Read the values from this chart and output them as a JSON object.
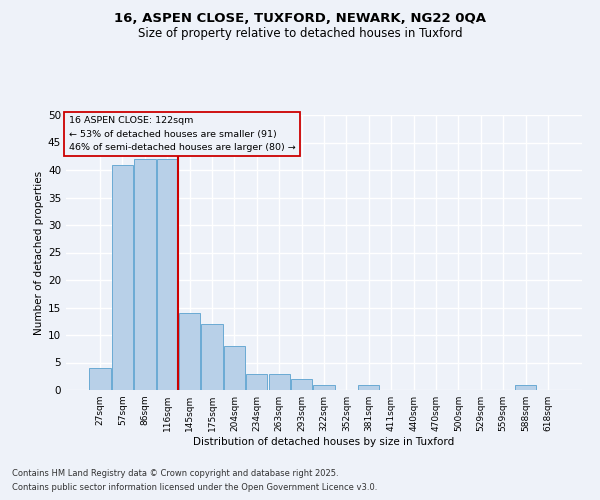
{
  "title1": "16, ASPEN CLOSE, TUXFORD, NEWARK, NG22 0QA",
  "title2": "Size of property relative to detached houses in Tuxford",
  "xlabel": "Distribution of detached houses by size in Tuxford",
  "ylabel": "Number of detached properties",
  "footer1": "Contains HM Land Registry data © Crown copyright and database right 2025.",
  "footer2": "Contains public sector information licensed under the Open Government Licence v3.0.",
  "annotation_title": "16 ASPEN CLOSE: 122sqm",
  "annotation_line2": "← 53% of detached houses are smaller (91)",
  "annotation_line3": "46% of semi-detached houses are larger (80) →",
  "bar_labels": [
    "27sqm",
    "57sqm",
    "86sqm",
    "116sqm",
    "145sqm",
    "175sqm",
    "204sqm",
    "234sqm",
    "263sqm",
    "293sqm",
    "322sqm",
    "352sqm",
    "381sqm",
    "411sqm",
    "440sqm",
    "470sqm",
    "500sqm",
    "529sqm",
    "559sqm",
    "588sqm",
    "618sqm"
  ],
  "bar_values": [
    4,
    41,
    42,
    42,
    14,
    12,
    8,
    3,
    3,
    2,
    1,
    0,
    1,
    0,
    0,
    0,
    0,
    0,
    0,
    1,
    0
  ],
  "bar_color": "#b8d0e8",
  "bar_edge_color": "#6aaad4",
  "vline_x": 3.5,
  "vline_color": "#cc0000",
  "background_color": "#eef2f9",
  "grid_color": "#ffffff",
  "ylim": [
    0,
    50
  ],
  "yticks": [
    0,
    5,
    10,
    15,
    20,
    25,
    30,
    35,
    40,
    45,
    50
  ]
}
